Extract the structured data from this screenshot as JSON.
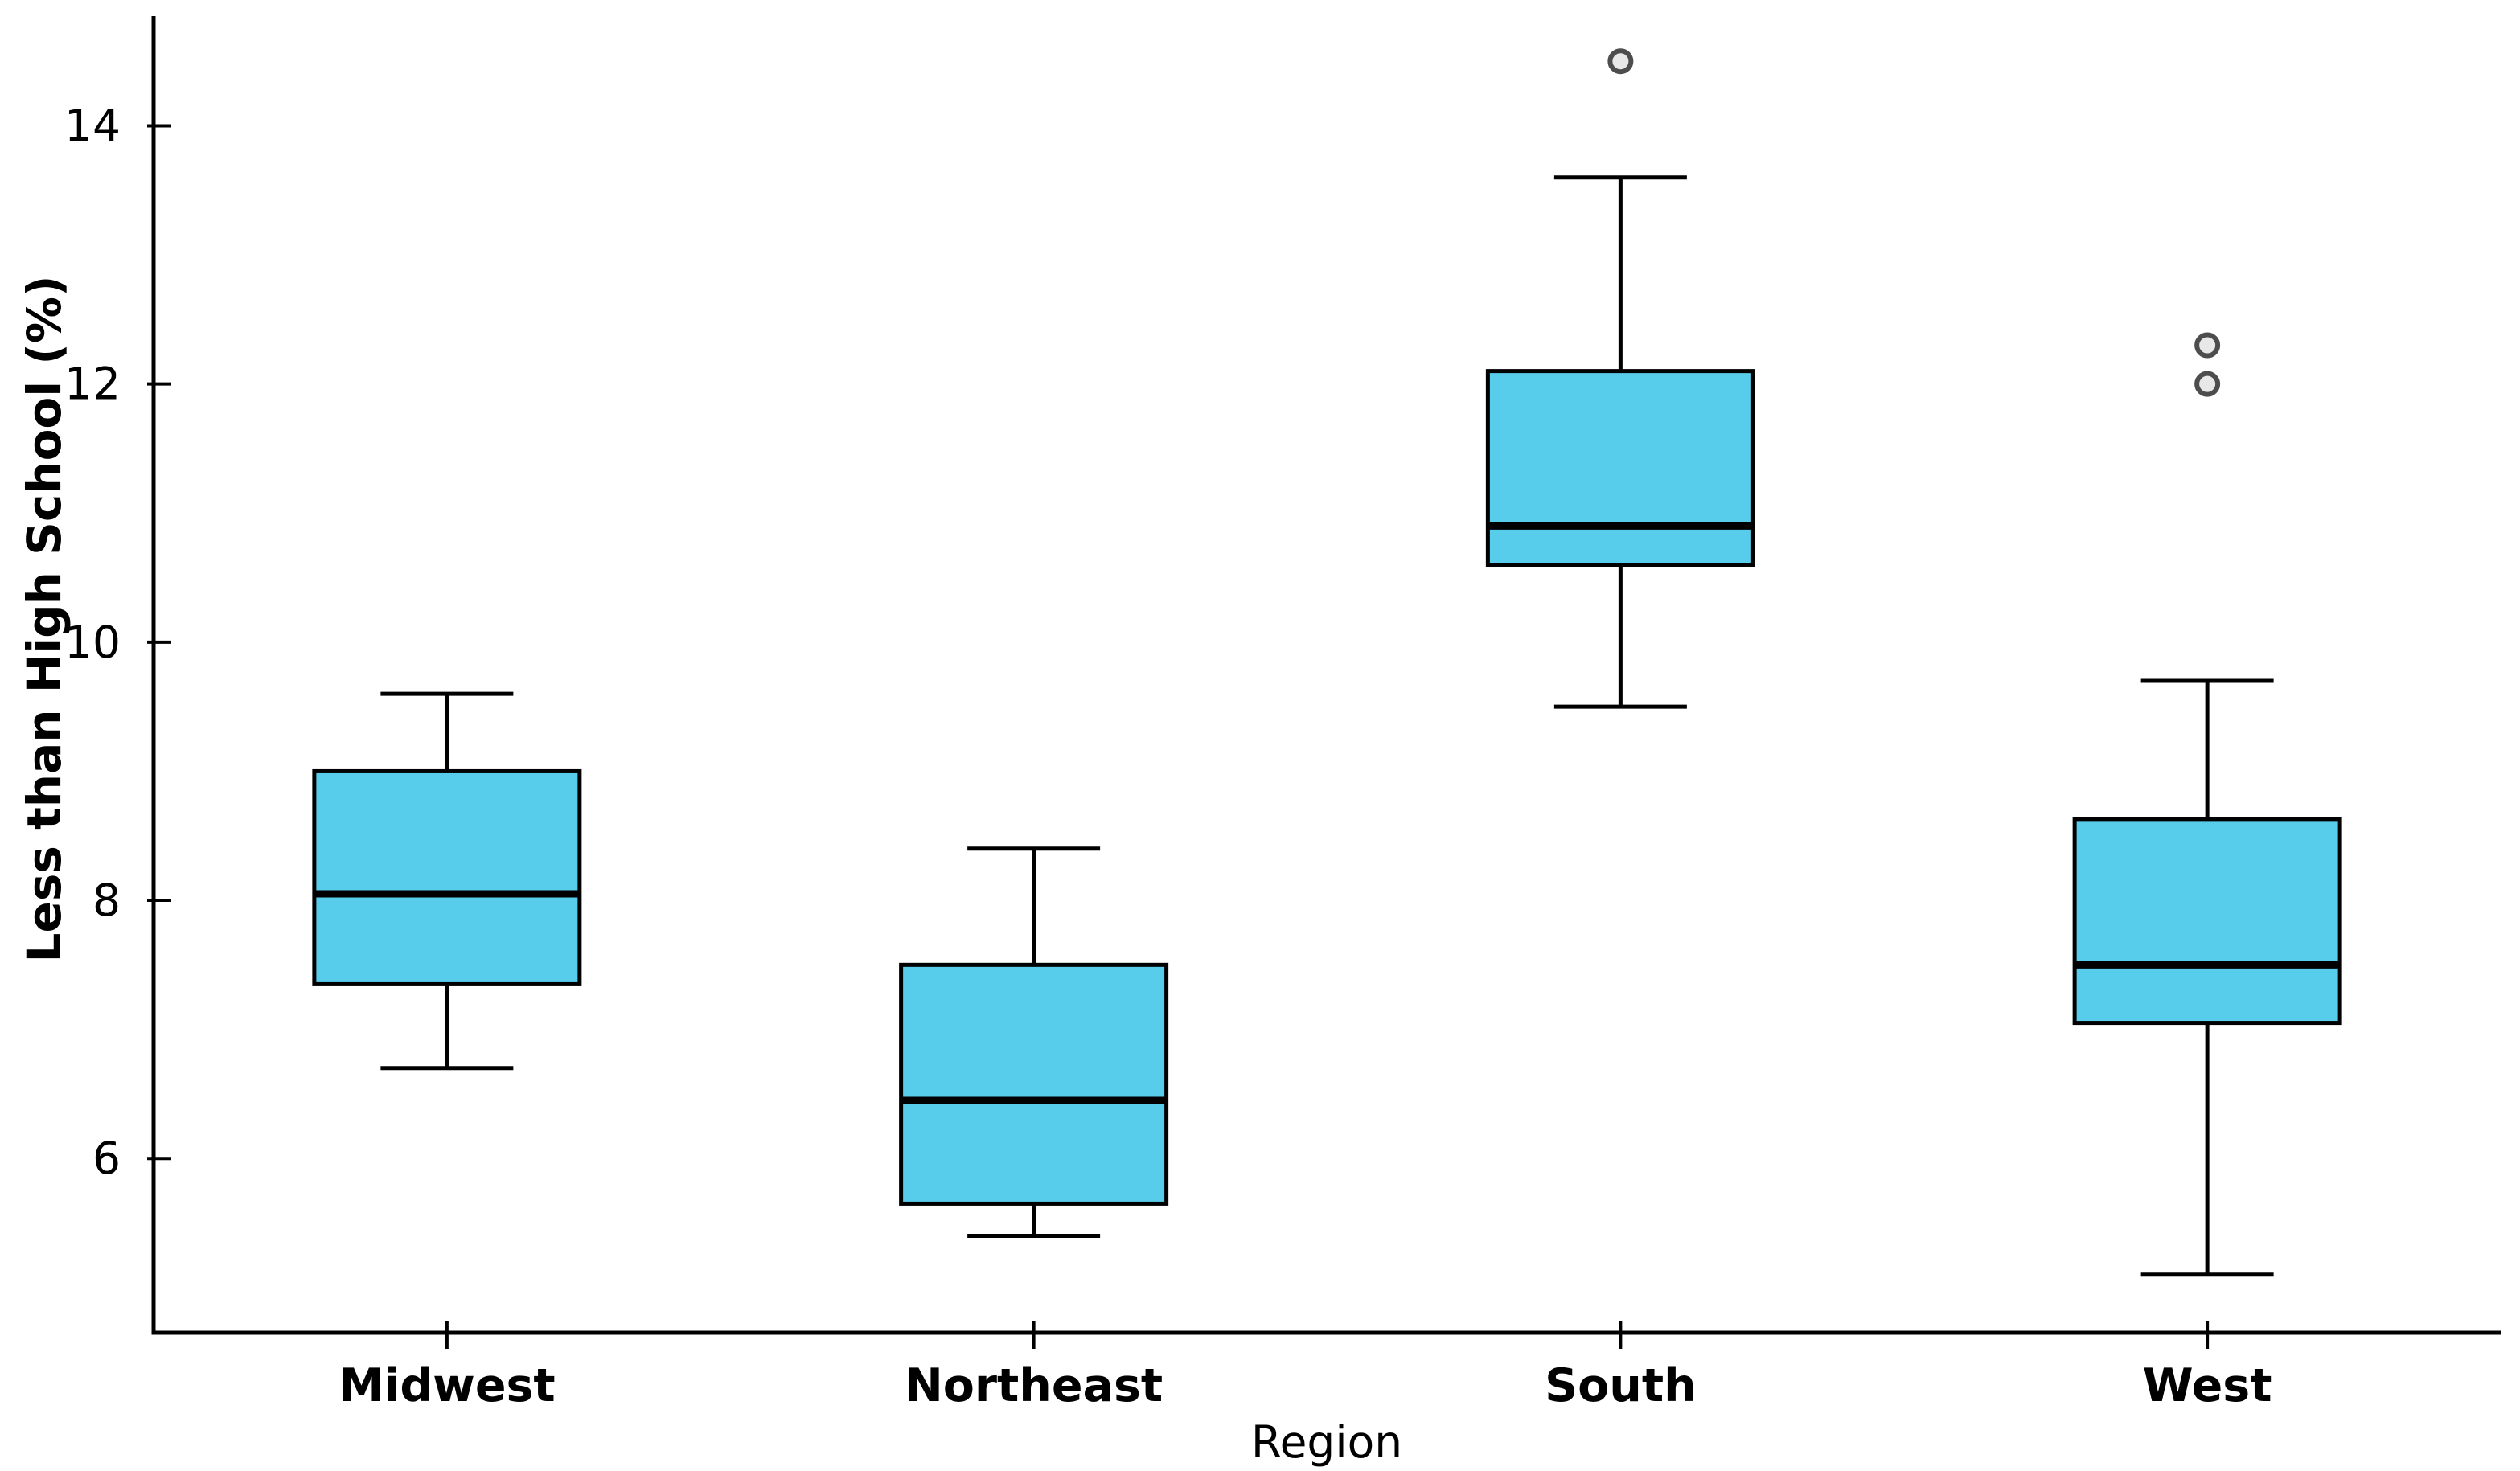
{
  "figure": {
    "background": "#ffffff"
  },
  "chart_data": {
    "type": "box",
    "title": "",
    "xlabel": "Region",
    "ylabel": "Less than High School (%)",
    "categories": [
      "Midwest",
      "Northeast",
      "South",
      "West"
    ],
    "yticks": [
      6,
      8,
      10,
      12,
      14
    ],
    "ylim": [
      4.65,
      14.85
    ],
    "grid": false,
    "legend": "none",
    "colors": {
      "box_fill": "#58CDEB",
      "line": "#000000",
      "outlier_fill": "#E8E8E8",
      "outlier_stroke": "#4D4D4D"
    },
    "series": [
      {
        "name": "Midwest",
        "whislo": 6.7,
        "q1": 7.35,
        "med": 8.05,
        "q3": 9.0,
        "whishi": 9.6,
        "outliers": []
      },
      {
        "name": "Northeast",
        "whislo": 5.4,
        "q1": 5.65,
        "med": 6.45,
        "q3": 7.5,
        "whishi": 8.4,
        "outliers": []
      },
      {
        "name": "South",
        "whislo": 9.5,
        "q1": 10.6,
        "med": 10.9,
        "q3": 12.1,
        "whishi": 13.6,
        "outliers": [
          14.5
        ]
      },
      {
        "name": "West",
        "whislo": 5.1,
        "q1": 7.05,
        "med": 7.5,
        "q3": 8.63,
        "whishi": 9.7,
        "outliers": [
          12.0,
          12.3
        ]
      }
    ]
  }
}
